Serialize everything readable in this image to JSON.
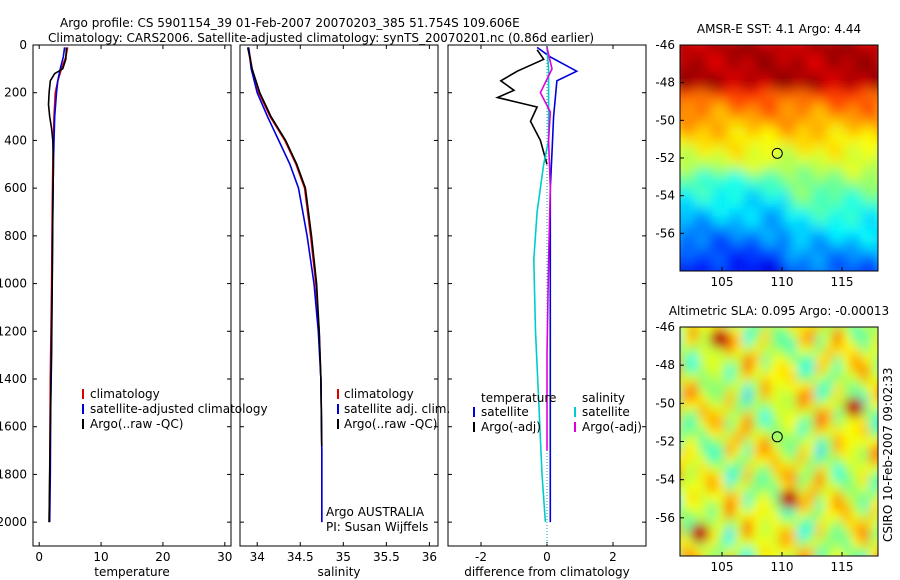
{
  "title": {
    "line1": "Argo profile: CS 5901154_39 01-Feb-2007 20070203_385 51.754S 109.606E",
    "line2": "Climatology: CARS2006. Satellite-adjusted climatology: synTS_20070201.nc (0.86d earlier)"
  },
  "chart_data": [
    {
      "id": "temperature",
      "type": "line",
      "xlabel": "temperature",
      "ylabel": "",
      "xlim": [
        -1,
        31
      ],
      "ylim": [
        2100,
        0
      ],
      "xticks": [
        0,
        10,
        20,
        30
      ],
      "yticks": [
        0,
        200,
        400,
        600,
        800,
        1000,
        1200,
        1400,
        1600,
        1800,
        2000
      ],
      "legend": [
        "climatology",
        "satellite-adjusted climatology",
        "Argo(..raw -QC)"
      ],
      "series": [
        {
          "name": "climatology",
          "color": "#dd0000",
          "x": [
            4.6,
            4.3,
            3.6,
            3.0,
            2.6,
            2.4,
            2.3,
            2.2,
            2.1,
            2.0,
            1.8,
            1.7,
            1.6
          ],
          "y": [
            10,
            50,
            100,
            150,
            200,
            300,
            400,
            500,
            700,
            1000,
            1400,
            1800,
            2000
          ]
        },
        {
          "name": "satellite-adjusted climatology",
          "color": "#0000dd",
          "x": [
            4.1,
            3.9,
            3.4,
            3.0,
            2.8,
            2.5,
            2.4,
            2.3,
            2.2,
            2.1,
            1.9,
            1.8,
            1.7
          ],
          "y": [
            10,
            50,
            100,
            150,
            200,
            300,
            400,
            500,
            700,
            1000,
            1400,
            1800,
            2000
          ]
        },
        {
          "name": "Argo(..raw -QC)",
          "color": "#000000",
          "x": [
            4.4,
            4.3,
            3.8,
            2.5,
            1.8,
            1.6,
            1.5,
            1.7,
            2.0,
            2.2,
            2.3,
            2.2,
            2.1,
            2.0,
            1.8,
            1.7,
            1.6
          ],
          "y": [
            10,
            60,
            100,
            120,
            150,
            200,
            250,
            300,
            350,
            400,
            500,
            700,
            1000,
            1300,
            1600,
            1800,
            2000
          ]
        }
      ]
    },
    {
      "id": "salinity",
      "type": "line",
      "xlabel": "salinity",
      "ylabel": "",
      "xlim": [
        33.8,
        36.1
      ],
      "ylim": [
        2100,
        0
      ],
      "xticks": [
        34,
        34.5,
        35,
        35.5,
        36
      ],
      "xticklabels": [
        "34",
        "34.5",
        "35",
        "35.5",
        "36"
      ],
      "legend": [
        "climatology",
        "satellite adj. clim.",
        "Argo(..raw -QC)"
      ],
      "annotation": [
        "Argo AUSTRALIA",
        "PI: Susan Wijffels"
      ],
      "series": [
        {
          "name": "climatology",
          "color": "#dd0000",
          "x": [
            33.9,
            33.94,
            34.02,
            34.15,
            34.32,
            34.45,
            34.55,
            34.62,
            34.68,
            34.72,
            34.74,
            34.75,
            34.75
          ],
          "y": [
            10,
            100,
            200,
            300,
            400,
            500,
            600,
            800,
            1000,
            1200,
            1400,
            1700,
            2000
          ]
        },
        {
          "name": "satellite adj. clim.",
          "color": "#0000dd",
          "x": [
            33.9,
            33.93,
            34.0,
            34.12,
            34.25,
            34.38,
            34.48,
            34.58,
            34.66,
            34.71,
            34.74,
            34.75,
            34.75
          ],
          "y": [
            10,
            100,
            200,
            300,
            400,
            500,
            600,
            800,
            1000,
            1200,
            1400,
            1700,
            2000
          ]
        },
        {
          "name": "Argo(..raw -QC)",
          "color": "#000000",
          "x": [
            33.89,
            33.94,
            34.03,
            34.16,
            34.33,
            34.46,
            34.56,
            34.63,
            34.69,
            34.72,
            34.74,
            34.75
          ],
          "y": [
            10,
            100,
            200,
            300,
            400,
            500,
            600,
            800,
            1000,
            1200,
            1400,
            1680
          ]
        }
      ]
    },
    {
      "id": "difference",
      "type": "line",
      "xlabel": "difference from climatology",
      "ylabel": "",
      "xlim": [
        -3,
        3
      ],
      "ylim": [
        2100,
        0
      ],
      "xticks": [
        -2,
        0,
        2
      ],
      "legend_left_title": "temperature",
      "legend_right_title": "salinity",
      "legend_left": [
        "satellite",
        "Argo(-adj)"
      ],
      "legend_right": [
        "satellite",
        "Argo(-adj)"
      ],
      "series": [
        {
          "name": "temperature satellite",
          "color": "#0000dd",
          "x": [
            -0.3,
            0.1,
            0.9,
            0.3,
            0.2,
            0.15,
            0.1,
            0.1,
            0.1,
            0.1,
            0.1,
            0.1
          ],
          "y": [
            10,
            50,
            110,
            150,
            300,
            450,
            600,
            900,
            1200,
            1500,
            1800,
            2000
          ]
        },
        {
          "name": "temperature Argo(-adj)",
          "color": "#000000",
          "x": [
            -0.3,
            -0.1,
            -0.9,
            -1.4,
            -1.0,
            -1.5,
            -0.3,
            -0.5,
            -0.2,
            0.0
          ],
          "y": [
            20,
            60,
            110,
            150,
            190,
            220,
            260,
            320,
            400,
            500
          ]
        },
        {
          "name": "salinity satellite",
          "color": "#00cccc",
          "x": [
            0.0,
            0.05,
            0.05,
            -0.1,
            -0.3,
            -0.4,
            -0.35,
            -0.25,
            -0.15,
            -0.05
          ],
          "y": [
            10,
            100,
            400,
            500,
            700,
            900,
            1200,
            1500,
            1800,
            2000
          ]
        },
        {
          "name": "salinity Argo(-adj)",
          "color": "#dd00dd",
          "x": [
            0.0,
            0.15,
            -0.2,
            0.1,
            0.05,
            0.1,
            0.05,
            0.0,
            0.0
          ],
          "y": [
            10,
            100,
            200,
            280,
            400,
            600,
            900,
            1300,
            1700
          ]
        }
      ]
    },
    {
      "id": "sst",
      "type": "heatmap",
      "title": "AMSR-E SST: 4.1  Argo: 4.44",
      "xlim": [
        101.5,
        118
      ],
      "ylim": [
        -58,
        -46
      ],
      "xticks": [
        105,
        110,
        115
      ],
      "yticks": [
        -46,
        -48,
        -50,
        -52,
        -54,
        -56
      ],
      "marker": {
        "lon": 109.606,
        "lat": -51.754
      }
    },
    {
      "id": "sla",
      "type": "heatmap",
      "title": "Altimetric SLA: 0.095  Argo: -0.00013",
      "xlim": [
        101.5,
        118
      ],
      "ylim": [
        -58,
        -46
      ],
      "xticks": [
        105,
        110,
        115
      ],
      "yticks": [
        -46,
        -48,
        -50,
        -52,
        -54,
        -56
      ],
      "marker": {
        "lon": 109.606,
        "lat": -51.754
      },
      "side_label": "CSIRO 10-Feb-2007 09:02:33"
    }
  ],
  "colors": {
    "climatology": "#dd0000",
    "satellite": "#0000dd",
    "argo": "#000000",
    "salinity_satellite": "#00cccc",
    "salinity_argo": "#dd00dd"
  }
}
